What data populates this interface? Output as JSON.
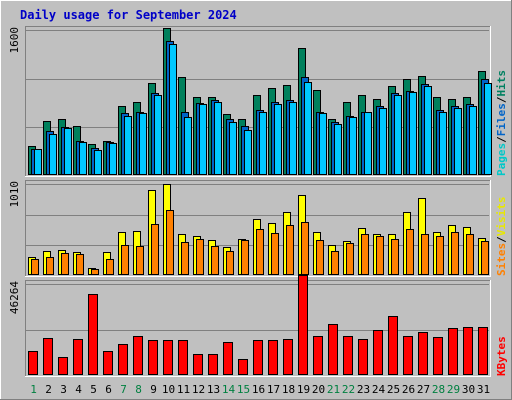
{
  "chart_data": {
    "type": "bar",
    "title": "Daily usage for September 2024",
    "categories": [
      "1",
      "2",
      "3",
      "4",
      "5",
      "6",
      "7",
      "8",
      "9",
      "10",
      "11",
      "12",
      "13",
      "14",
      "15",
      "16",
      "17",
      "18",
      "19",
      "20",
      "21",
      "22",
      "23",
      "24",
      "25",
      "26",
      "27",
      "28",
      "29",
      "30",
      "31"
    ],
    "weekend_days": [
      "1",
      "7",
      "8",
      "14",
      "15",
      "21",
      "22",
      "28",
      "29"
    ],
    "panels": [
      {
        "id": "hits-files-pages",
        "ymax_label": "1600",
        "ymax": 1600,
        "ylabels": [
          {
            "text": "Pages",
            "color": "#00c8c8"
          },
          {
            "text": "/",
            "color": "#000000"
          },
          {
            "text": "Files",
            "color": "#0064c8"
          },
          {
            "text": "/",
            "color": "#000000"
          },
          {
            "text": "Hits",
            "color": "#008060"
          }
        ],
        "series": [
          {
            "key": "hits",
            "color": "#00805c",
            "values": [
              320,
              600,
              620,
              540,
              340,
              380,
              760,
              800,
              1020,
              1620,
              1080,
              860,
              860,
              670,
              620,
              880,
              960,
              990,
              1400,
              940,
              620,
              800,
              880,
              840,
              980,
              1060,
              1090,
              860,
              840,
              860,
              1150
            ]
          },
          {
            "key": "files",
            "color": "#0064c8",
            "values": [
              290,
              480,
              530,
              380,
              300,
              360,
              680,
              700,
              900,
              1480,
              700,
              790,
              830,
              620,
              540,
              720,
              800,
              830,
              1080,
              700,
              590,
              650,
              700,
              760,
              900,
              930,
              1000,
              720,
              760,
              780,
              1060
            ]
          },
          {
            "key": "pages",
            "color": "#00c8ff",
            "values": [
              290,
              450,
              520,
              360,
              280,
              350,
              650,
              680,
              880,
              1450,
              640,
              780,
              800,
              580,
              500,
              700,
              780,
              800,
              1030,
              680,
              560,
              640,
              690,
              740,
              880,
              920,
              980,
              700,
              740,
              760,
              1010
            ]
          }
        ]
      },
      {
        "id": "visits-sites",
        "ymax_label": "1010",
        "ymax": 1010,
        "ylabels": [
          {
            "text": "Sites",
            "color": "#ff8000"
          },
          {
            "text": "/",
            "color": "#000000"
          },
          {
            "text": "Visits",
            "color": "#e8e800"
          }
        ],
        "series": [
          {
            "key": "visits",
            "color": "#ffff00",
            "values": [
              200,
              270,
              280,
              260,
              80,
              260,
              480,
              490,
              940,
              1010,
              450,
              430,
              390,
              310,
              400,
              620,
              580,
              700,
              890,
              480,
              330,
              380,
              520,
              460,
              460,
              700,
              860,
              480,
              560,
              530,
              410
            ]
          },
          {
            "key": "sites",
            "color": "#ff8000",
            "values": [
              180,
              200,
              240,
              230,
              70,
              180,
              330,
              320,
              570,
              720,
              370,
              400,
              320,
              270,
              390,
              510,
              470,
              550,
              590,
              390,
              270,
              360,
              460,
              430,
              400,
              510,
              460,
              430,
              480,
              460,
              380
            ]
          }
        ]
      },
      {
        "id": "kbytes",
        "ymax_label": "46264",
        "ymax": 46264,
        "ylabels": [
          {
            "text": "KBytes",
            "color": "#ff0000"
          }
        ],
        "series": [
          {
            "key": "kbytes",
            "color": "#ff0000",
            "values": [
              12000,
              18600,
              9000,
              18500,
              41000,
              12400,
              16000,
              19800,
              18000,
              17600,
              17600,
              10600,
              10800,
              17000,
              8300,
              18000,
              18000,
              18500,
              51000,
              19800,
              26000,
              20000,
              18300,
              23000,
              30000,
              20000,
              22000,
              19500,
              24000,
              24500,
              24500
            ]
          }
        ]
      }
    ]
  }
}
